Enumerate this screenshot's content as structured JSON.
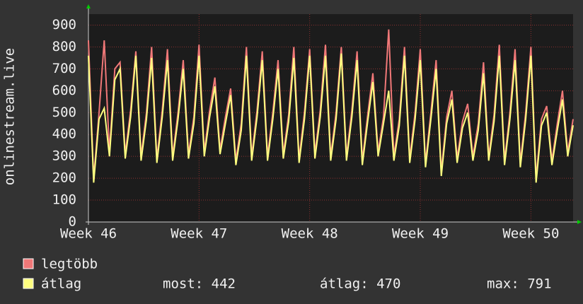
{
  "chart_data": {
    "type": "line",
    "ylabel": "onlinestream.live",
    "x": [
      0,
      0.33,
      0.67,
      1,
      1.33,
      1.67,
      2,
      2.33,
      2.67,
      3,
      3.33,
      3.67,
      4,
      4.33,
      4.67,
      5,
      5.33,
      5.67,
      6,
      6.33,
      6.67,
      7,
      7.33,
      7.67,
      8,
      8.33,
      8.67,
      9,
      9.33,
      9.67,
      10,
      10.33,
      10.67,
      11,
      11.33,
      11.67,
      12,
      12.33,
      12.67,
      13,
      13.33,
      13.67,
      14,
      14.33,
      14.67,
      15,
      15.33,
      15.67,
      16,
      16.33,
      16.67,
      17,
      17.33,
      17.67,
      18,
      18.33,
      18.67,
      19,
      19.33,
      19.67,
      20,
      20.33,
      20.67,
      21,
      21.33,
      21.67,
      22,
      22.33,
      22.67,
      23,
      23.33,
      23.67,
      24,
      24.33,
      24.67,
      25,
      25.33,
      25.67,
      26,
      26.33,
      26.67,
      27,
      27.33,
      27.67,
      28,
      28.33,
      28.67,
      29,
      29.33,
      29.67,
      30,
      30.33,
      30.67
    ],
    "series": [
      {
        "name": "legtöbb",
        "color": "#f07878",
        "values": [
          830,
          200,
          500,
          830,
          320,
          700,
          730,
          310,
          510,
          780,
          300,
          500,
          800,
          290,
          510,
          790,
          300,
          500,
          740,
          310,
          480,
          810,
          320,
          510,
          660,
          330,
          480,
          610,
          280,
          450,
          800,
          300,
          510,
          780,
          300,
          500,
          740,
          310,
          490,
          800,
          290,
          500,
          790,
          310,
          510,
          810,
          300,
          500,
          800,
          300,
          510,
          780,
          280,
          490,
          680,
          320,
          480,
          880,
          300,
          470,
          800,
          290,
          500,
          790,
          270,
          500,
          740,
          230,
          480,
          600,
          290,
          460,
          540,
          300,
          450,
          730,
          300,
          490,
          810,
          280,
          500,
          790,
          270,
          500,
          800,
          200,
          470,
          530,
          280,
          450,
          600,
          320,
          470
        ]
      },
      {
        "name": "átlag",
        "color": "#ffff80",
        "values": [
          760,
          180,
          470,
          520,
          300,
          650,
          700,
          290,
          480,
          760,
          280,
          470,
          750,
          270,
          480,
          740,
          280,
          470,
          700,
          290,
          450,
          760,
          300,
          480,
          620,
          310,
          450,
          580,
          260,
          420,
          760,
          280,
          480,
          740,
          280,
          470,
          700,
          290,
          460,
          750,
          270,
          470,
          760,
          290,
          480,
          760,
          280,
          470,
          770,
          280,
          480,
          740,
          260,
          460,
          640,
          300,
          450,
          600,
          280,
          440,
          760,
          270,
          470,
          740,
          250,
          470,
          700,
          210,
          450,
          560,
          270,
          430,
          500,
          280,
          420,
          680,
          280,
          460,
          760,
          260,
          470,
          740,
          250,
          470,
          760,
          180,
          440,
          500,
          260,
          420,
          560,
          300,
          442
        ]
      }
    ],
    "legend_stats": [
      "most: 442",
      "átlag: 470",
      "max: 791"
    ],
    "xlim": [
      0,
      30.67
    ],
    "xticks": [
      {
        "value": 0,
        "label": "Week 46"
      },
      {
        "value": 7,
        "label": "Week 47"
      },
      {
        "value": 14,
        "label": "Week 48"
      },
      {
        "value": 21,
        "label": "Week 49"
      },
      {
        "value": 28,
        "label": "Week 50"
      }
    ],
    "ylim": [
      0,
      950
    ],
    "yticks": [
      0,
      100,
      200,
      300,
      400,
      500,
      600,
      700,
      800,
      900
    ],
    "grid": true
  }
}
